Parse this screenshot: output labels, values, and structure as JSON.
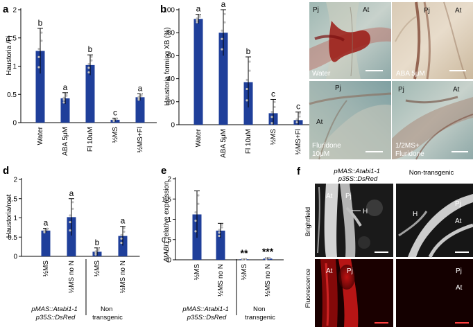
{
  "colors": {
    "bar": "#1f3f9a",
    "dot": "#c0c0c0",
    "scale": "#ffffff",
    "scale_red": "#ff4040"
  },
  "panels": {
    "a": {
      "letter": "a",
      "ylabel": "Haustoria /Pj",
      "yticks": [
        "0",
        "0.5",
        "1",
        "1.5",
        "2"
      ],
      "ymax": 2,
      "categories": [
        "Water",
        "ABA 5μM",
        "Fl  10uM",
        "½MS",
        "½MS+Fl"
      ],
      "values": [
        1.27,
        0.43,
        1.02,
        0.05,
        0.45
      ],
      "errors": [
        0.4,
        0.1,
        0.18,
        0.03,
        0.06
      ],
      "letters": [
        "b",
        "a",
        "b",
        "c",
        "a"
      ]
    },
    "b": {
      "letter": "b",
      "ylabel": "Haustoria forming XB (%)",
      "yticks": [
        "0",
        "20",
        "40",
        "60",
        "80",
        "100"
      ],
      "ymax": 100,
      "categories": [
        "Water",
        "ABA 5μM",
        "Fl  10uM",
        "½MS",
        "½MS+Fl"
      ],
      "values": [
        92,
        80,
        37,
        10,
        4
      ],
      "errors": [
        4,
        20,
        22,
        12,
        7
      ],
      "letters": [
        "a",
        "a",
        "b",
        "c",
        "c"
      ]
    },
    "c": {
      "letter": "c",
      "images": [
        {
          "pj": "Pj",
          "at": "At",
          "caption": "Water"
        },
        {
          "pj": "Pj",
          "at": "At",
          "caption": "ABA 5μM"
        },
        {
          "pj": "Pj",
          "at": "At",
          "caption": "Fluridone 10μM"
        },
        {
          "pj": "Pj",
          "at": "At",
          "caption": "1/2MS+ Fluridone"
        }
      ]
    },
    "d": {
      "letter": "d",
      "ylabel": "Haustoria/root",
      "yticks": [
        "0",
        "0.5",
        "1",
        "1.5",
        "2"
      ],
      "ymax": 2,
      "categories": [
        "½MS",
        "½MS no N",
        "½MS",
        "½MS no N"
      ],
      "values": [
        0.67,
        1.02,
        0.12,
        0.53
      ],
      "errors": [
        0.06,
        0.48,
        0.1,
        0.25
      ],
      "letters": [
        "a",
        "a",
        "b",
        "a"
      ],
      "group_left": [
        "pMAS::Atabi1-1",
        "p35S::DsRed"
      ],
      "group_right": [
        "Non",
        "transgenic"
      ]
    },
    "e": {
      "letter": "e",
      "ylabel_italic": "AtABI1",
      "ylabel_rest": " relative expression",
      "yticks": [
        "0",
        "0.5",
        "1",
        "1.5",
        "2"
      ],
      "ymax": 2,
      "categories": [
        "½MS",
        "½MS no N",
        "½MS",
        "½MS no N"
      ],
      "values": [
        1.12,
        0.72,
        0.01,
        0.03
      ],
      "errors": [
        0.58,
        0.18,
        0.01,
        0.02
      ],
      "letters": [
        "",
        "",
        "**",
        "***"
      ],
      "group_left": [
        "pMAS::Atabi1-1",
        "p35S::DsRed"
      ],
      "group_right": [
        "Non",
        "transgenic"
      ]
    },
    "f": {
      "letter": "f",
      "col_left": [
        "pMAS::Atabi1-1",
        "p35S::DsRed"
      ],
      "col_right": "Non-transgenic",
      "row_top": "Brightfield",
      "row_bottom": "Fluorescence",
      "bf_left": {
        "at": "At",
        "pj": "Pj",
        "h": "H"
      },
      "bf_right": {
        "h": "H",
        "pj": "Pj",
        "at": "At"
      },
      "fl_left": {
        "at": "At",
        "pj": "Pj"
      },
      "fl_right": {
        "pj": "Pj",
        "at": "At"
      }
    }
  }
}
